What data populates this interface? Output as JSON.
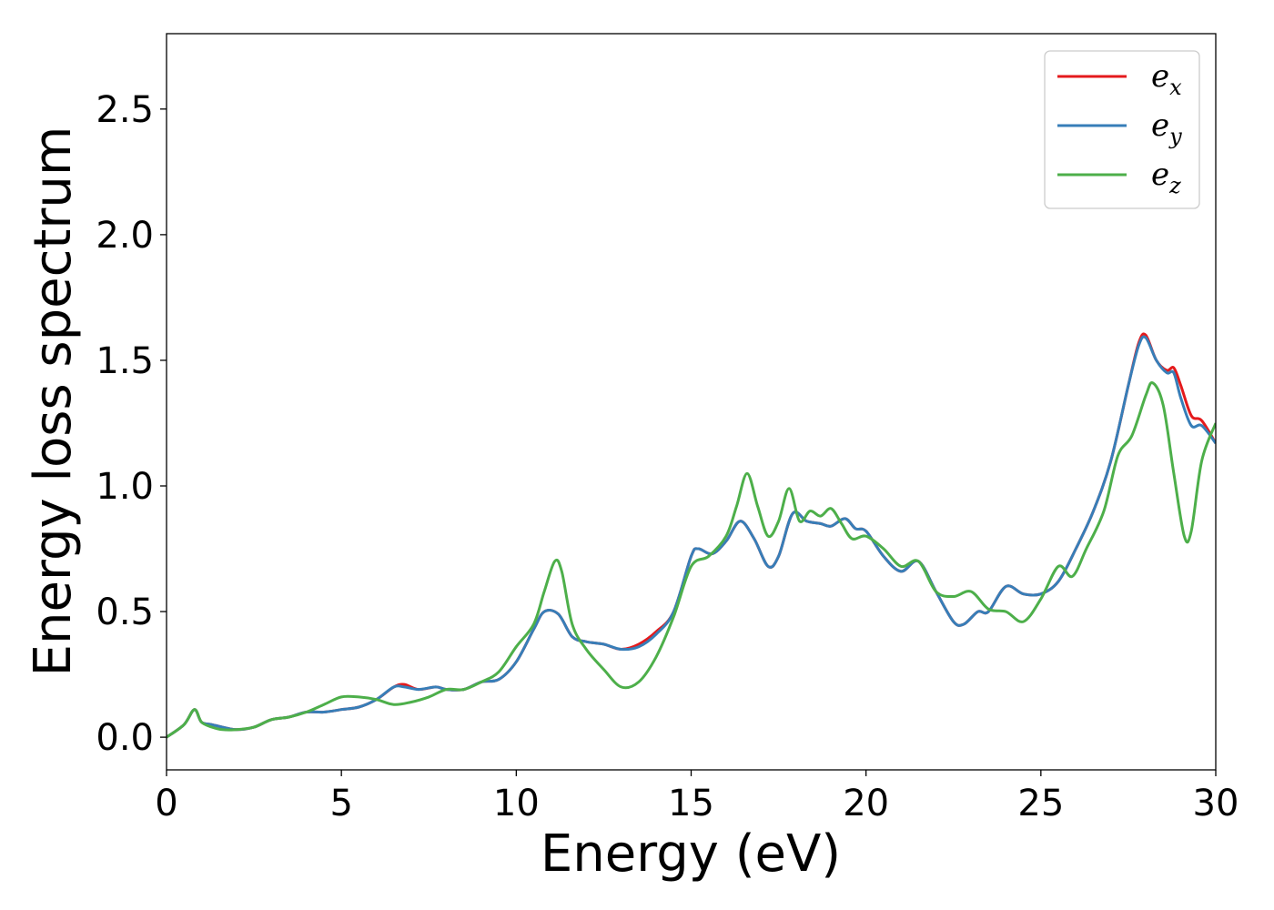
{
  "chart_data": {
    "type": "line",
    "xlabel": "Energy (eV)",
    "ylabel": "Energy loss spectrum",
    "xlim": [
      0,
      30
    ],
    "ylim": [
      -0.13,
      2.8
    ],
    "xticks": [
      0,
      5,
      10,
      15,
      20,
      25,
      30
    ],
    "xtick_labels": [
      "0",
      "5",
      "10",
      "15",
      "20",
      "25",
      "30"
    ],
    "yticks": [
      0.0,
      0.5,
      1.0,
      1.5,
      2.0,
      2.5
    ],
    "ytick_labels": [
      "0.0",
      "0.5",
      "1.0",
      "1.5",
      "2.0",
      "2.5"
    ],
    "grid": false,
    "legend_position": "top-right",
    "series": [
      {
        "name": "e",
        "sub": "x",
        "color": "#e41a1c",
        "x": [
          0,
          0.5,
          0.8,
          1.0,
          1.3,
          1.6,
          2.0,
          2.5,
          3.0,
          3.5,
          4.0,
          4.5,
          5.0,
          5.5,
          6.0,
          6.5,
          6.8,
          7.2,
          7.7,
          8.0,
          8.5,
          9.0,
          9.5,
          10.0,
          10.5,
          10.8,
          11.2,
          11.6,
          12.0,
          12.5,
          13.0,
          13.5,
          14.0,
          14.5,
          15.0,
          15.2,
          15.6,
          16.0,
          16.4,
          16.8,
          17.2,
          17.5,
          17.9,
          18.3,
          18.7,
          19.0,
          19.4,
          19.7,
          20.0,
          20.5,
          21.0,
          21.5,
          22.0,
          22.5,
          22.8,
          23.2,
          23.5,
          24.0,
          24.5,
          25.0,
          25.5,
          26.0,
          26.5,
          27.0,
          27.5,
          27.8,
          28.0,
          28.3,
          28.6,
          28.8,
          29.0,
          29.3,
          29.6,
          30.0
        ],
        "y": [
          0.0,
          0.05,
          0.11,
          0.06,
          0.05,
          0.04,
          0.03,
          0.04,
          0.07,
          0.08,
          0.1,
          0.1,
          0.11,
          0.12,
          0.15,
          0.2,
          0.21,
          0.19,
          0.2,
          0.19,
          0.19,
          0.22,
          0.23,
          0.3,
          0.43,
          0.5,
          0.49,
          0.4,
          0.38,
          0.37,
          0.35,
          0.37,
          0.42,
          0.5,
          0.72,
          0.75,
          0.73,
          0.78,
          0.86,
          0.79,
          0.68,
          0.72,
          0.89,
          0.86,
          0.85,
          0.84,
          0.87,
          0.83,
          0.82,
          0.72,
          0.66,
          0.7,
          0.58,
          0.46,
          0.45,
          0.5,
          0.5,
          0.6,
          0.57,
          0.57,
          0.62,
          0.75,
          0.9,
          1.1,
          1.4,
          1.57,
          1.6,
          1.5,
          1.46,
          1.47,
          1.4,
          1.28,
          1.26,
          1.17
        ]
      },
      {
        "name": "e",
        "sub": "y",
        "color": "#377eb8",
        "x": [
          0,
          0.5,
          0.8,
          1.0,
          1.3,
          1.6,
          2.0,
          2.5,
          3.0,
          3.5,
          4.0,
          4.5,
          5.0,
          5.5,
          6.0,
          6.5,
          6.8,
          7.2,
          7.7,
          8.0,
          8.5,
          9.0,
          9.5,
          10.0,
          10.5,
          10.8,
          11.2,
          11.6,
          12.0,
          12.5,
          13.0,
          13.5,
          14.0,
          14.5,
          15.0,
          15.2,
          15.6,
          16.0,
          16.4,
          16.8,
          17.2,
          17.5,
          17.9,
          18.3,
          18.7,
          19.0,
          19.4,
          19.7,
          20.0,
          20.5,
          21.0,
          21.5,
          22.0,
          22.5,
          22.8,
          23.2,
          23.5,
          24.0,
          24.5,
          25.0,
          25.5,
          26.0,
          26.5,
          27.0,
          27.5,
          27.8,
          28.0,
          28.3,
          28.6,
          28.8,
          29.0,
          29.3,
          29.6,
          30.0
        ],
        "y": [
          0.0,
          0.05,
          0.11,
          0.06,
          0.05,
          0.04,
          0.03,
          0.04,
          0.07,
          0.08,
          0.1,
          0.1,
          0.11,
          0.12,
          0.15,
          0.2,
          0.2,
          0.19,
          0.2,
          0.19,
          0.19,
          0.22,
          0.23,
          0.3,
          0.43,
          0.5,
          0.49,
          0.4,
          0.38,
          0.37,
          0.35,
          0.36,
          0.41,
          0.5,
          0.72,
          0.75,
          0.73,
          0.78,
          0.86,
          0.79,
          0.68,
          0.72,
          0.89,
          0.86,
          0.85,
          0.84,
          0.87,
          0.83,
          0.82,
          0.72,
          0.66,
          0.7,
          0.58,
          0.46,
          0.45,
          0.5,
          0.5,
          0.6,
          0.57,
          0.57,
          0.62,
          0.75,
          0.9,
          1.1,
          1.4,
          1.56,
          1.59,
          1.5,
          1.45,
          1.45,
          1.35,
          1.24,
          1.24,
          1.17
        ]
      },
      {
        "name": "e",
        "sub": "z",
        "color": "#4daf4a",
        "x": [
          0,
          0.5,
          0.8,
          1.0,
          1.3,
          1.6,
          2.0,
          2.5,
          3.0,
          3.5,
          4.0,
          4.5,
          5.0,
          5.5,
          6.0,
          6.5,
          7.0,
          7.5,
          8.0,
          8.5,
          9.0,
          9.5,
          10.0,
          10.5,
          10.8,
          11.1,
          11.3,
          11.6,
          12.0,
          12.5,
          13.0,
          13.5,
          14.0,
          14.5,
          15.0,
          15.5,
          16.0,
          16.3,
          16.6,
          16.9,
          17.2,
          17.5,
          17.8,
          18.1,
          18.4,
          18.7,
          19.0,
          19.3,
          19.6,
          20.0,
          20.5,
          21.0,
          21.5,
          22.0,
          22.5,
          23.0,
          23.5,
          24.0,
          24.5,
          25.0,
          25.5,
          25.9,
          26.3,
          26.8,
          27.2,
          27.6,
          28.0,
          28.2,
          28.5,
          28.8,
          29.1,
          29.3,
          29.6,
          30.0
        ],
        "y": [
          0.0,
          0.05,
          0.11,
          0.06,
          0.04,
          0.03,
          0.03,
          0.04,
          0.07,
          0.08,
          0.1,
          0.13,
          0.16,
          0.16,
          0.15,
          0.13,
          0.14,
          0.16,
          0.19,
          0.19,
          0.22,
          0.26,
          0.36,
          0.45,
          0.58,
          0.7,
          0.66,
          0.45,
          0.35,
          0.27,
          0.2,
          0.22,
          0.32,
          0.48,
          0.68,
          0.72,
          0.8,
          0.92,
          1.05,
          0.92,
          0.8,
          0.86,
          0.99,
          0.86,
          0.9,
          0.88,
          0.91,
          0.85,
          0.79,
          0.8,
          0.75,
          0.68,
          0.7,
          0.58,
          0.56,
          0.58,
          0.51,
          0.5,
          0.46,
          0.55,
          0.68,
          0.64,
          0.75,
          0.9,
          1.12,
          1.2,
          1.36,
          1.41,
          1.32,
          1.05,
          0.8,
          0.82,
          1.1,
          1.25
        ]
      }
    ]
  }
}
